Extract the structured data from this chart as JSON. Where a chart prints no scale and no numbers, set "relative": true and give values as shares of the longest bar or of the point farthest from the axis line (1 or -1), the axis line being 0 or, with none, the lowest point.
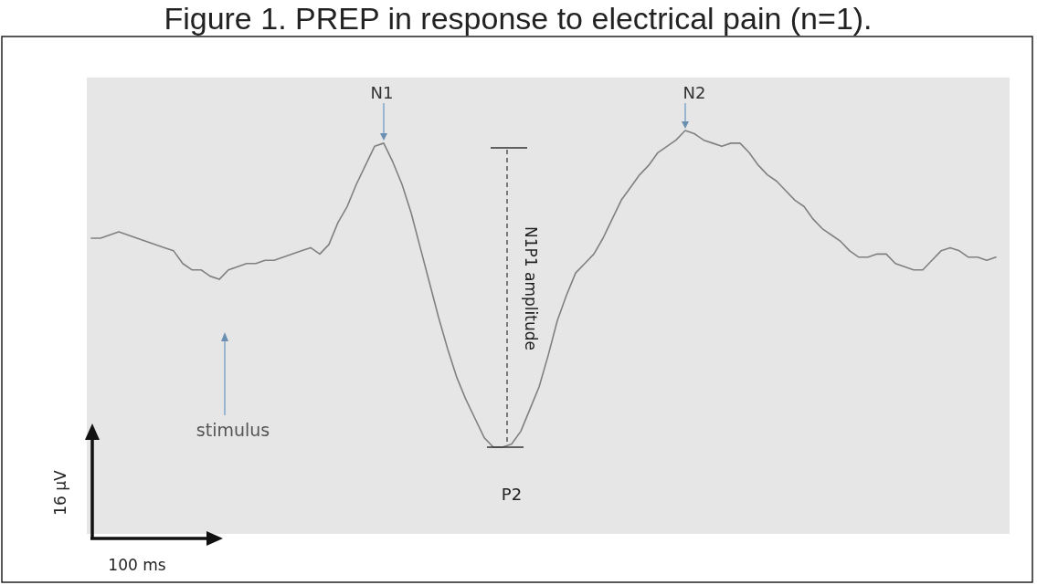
{
  "chart_data": {
    "type": "line",
    "relative": true,
    "title": "Figure 1. PREP in response to electrical pain (n=1).",
    "categories": [
      null,
      null,
      null,
      null,
      null,
      null,
      null,
      null,
      null,
      null,
      null,
      null,
      null,
      null,
      null,
      null,
      null,
      null,
      null,
      null,
      null,
      null,
      null,
      null,
      null,
      null,
      null,
      null,
      null,
      null,
      null,
      null,
      null,
      null,
      null,
      null,
      null,
      null,
      null,
      null,
      null,
      null,
      null,
      null,
      null,
      null,
      null,
      null,
      null,
      null,
      null,
      null,
      null,
      null,
      null,
      null,
      null,
      null,
      null,
      null,
      null,
      null,
      null,
      null,
      null,
      null,
      null,
      null,
      null,
      null,
      null,
      null,
      null,
      null,
      null,
      null,
      null,
      null,
      null,
      null,
      null,
      null,
      null,
      null,
      null,
      null,
      null,
      null,
      null,
      null,
      null,
      null,
      null,
      null,
      null,
      null,
      null,
      null,
      null,
      null
    ],
    "series": [
      {
        "color": "#808080",
        "values": [
          0.66,
          0.66,
          0.67,
          0.68,
          0.67,
          0.66,
          0.65,
          0.64,
          0.63,
          0.62,
          0.58,
          0.56,
          0.56,
          0.54,
          0.53,
          0.56,
          0.57,
          0.58,
          0.58,
          0.59,
          0.59,
          0.6,
          0.61,
          0.62,
          0.63,
          0.61,
          0.64,
          0.71,
          0.76,
          0.83,
          0.89,
          0.95,
          0.96,
          0.9,
          0.83,
          0.74,
          0.63,
          0.52,
          0.41,
          0.31,
          0.22,
          0.15,
          0.09,
          0.03,
          0,
          0,
          0.01,
          0.05,
          0.12,
          0.19,
          0.29,
          0.4,
          0.48,
          0.55,
          0.58,
          0.61,
          0.66,
          0.72,
          0.78,
          0.82,
          0.86,
          0.89,
          0.93,
          0.95,
          0.97,
          1,
          0.99,
          0.97,
          0.96,
          0.95,
          0.96,
          0.96,
          0.93,
          0.89,
          0.86,
          0.84,
          0.81,
          0.78,
          0.76,
          0.72,
          0.69,
          0.67,
          0.65,
          0.62,
          0.6,
          0.6,
          0.61,
          0.61,
          0.58,
          0.57,
          0.56,
          0.56,
          0.59,
          0.62,
          0.63,
          0.62,
          0.6,
          0.6,
          0.59,
          0.6
        ]
      }
    ],
    "annotations": [
      "N1",
      "N2",
      "P2",
      "stimulus",
      "N1P1 amplitude",
      "16 µV",
      "100 ms"
    ]
  }
}
